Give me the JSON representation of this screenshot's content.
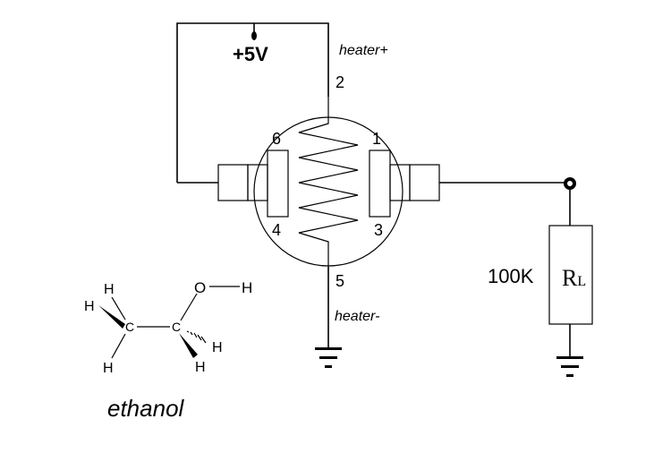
{
  "supply": {
    "label": "+5V"
  },
  "heater": {
    "plus_label": "heater+",
    "minus_label": "heater-"
  },
  "pins": {
    "p1": "1",
    "p2": "2",
    "p3": "3",
    "p4": "4",
    "p5": "5",
    "p6": "6"
  },
  "load_resistor": {
    "value": "100K",
    "symbol_main": "R",
    "symbol_sub": "L"
  },
  "molecule": {
    "name": "ethanol",
    "atoms": {
      "carbon": "C",
      "oxygen": "O",
      "hydrogen": "H"
    }
  }
}
